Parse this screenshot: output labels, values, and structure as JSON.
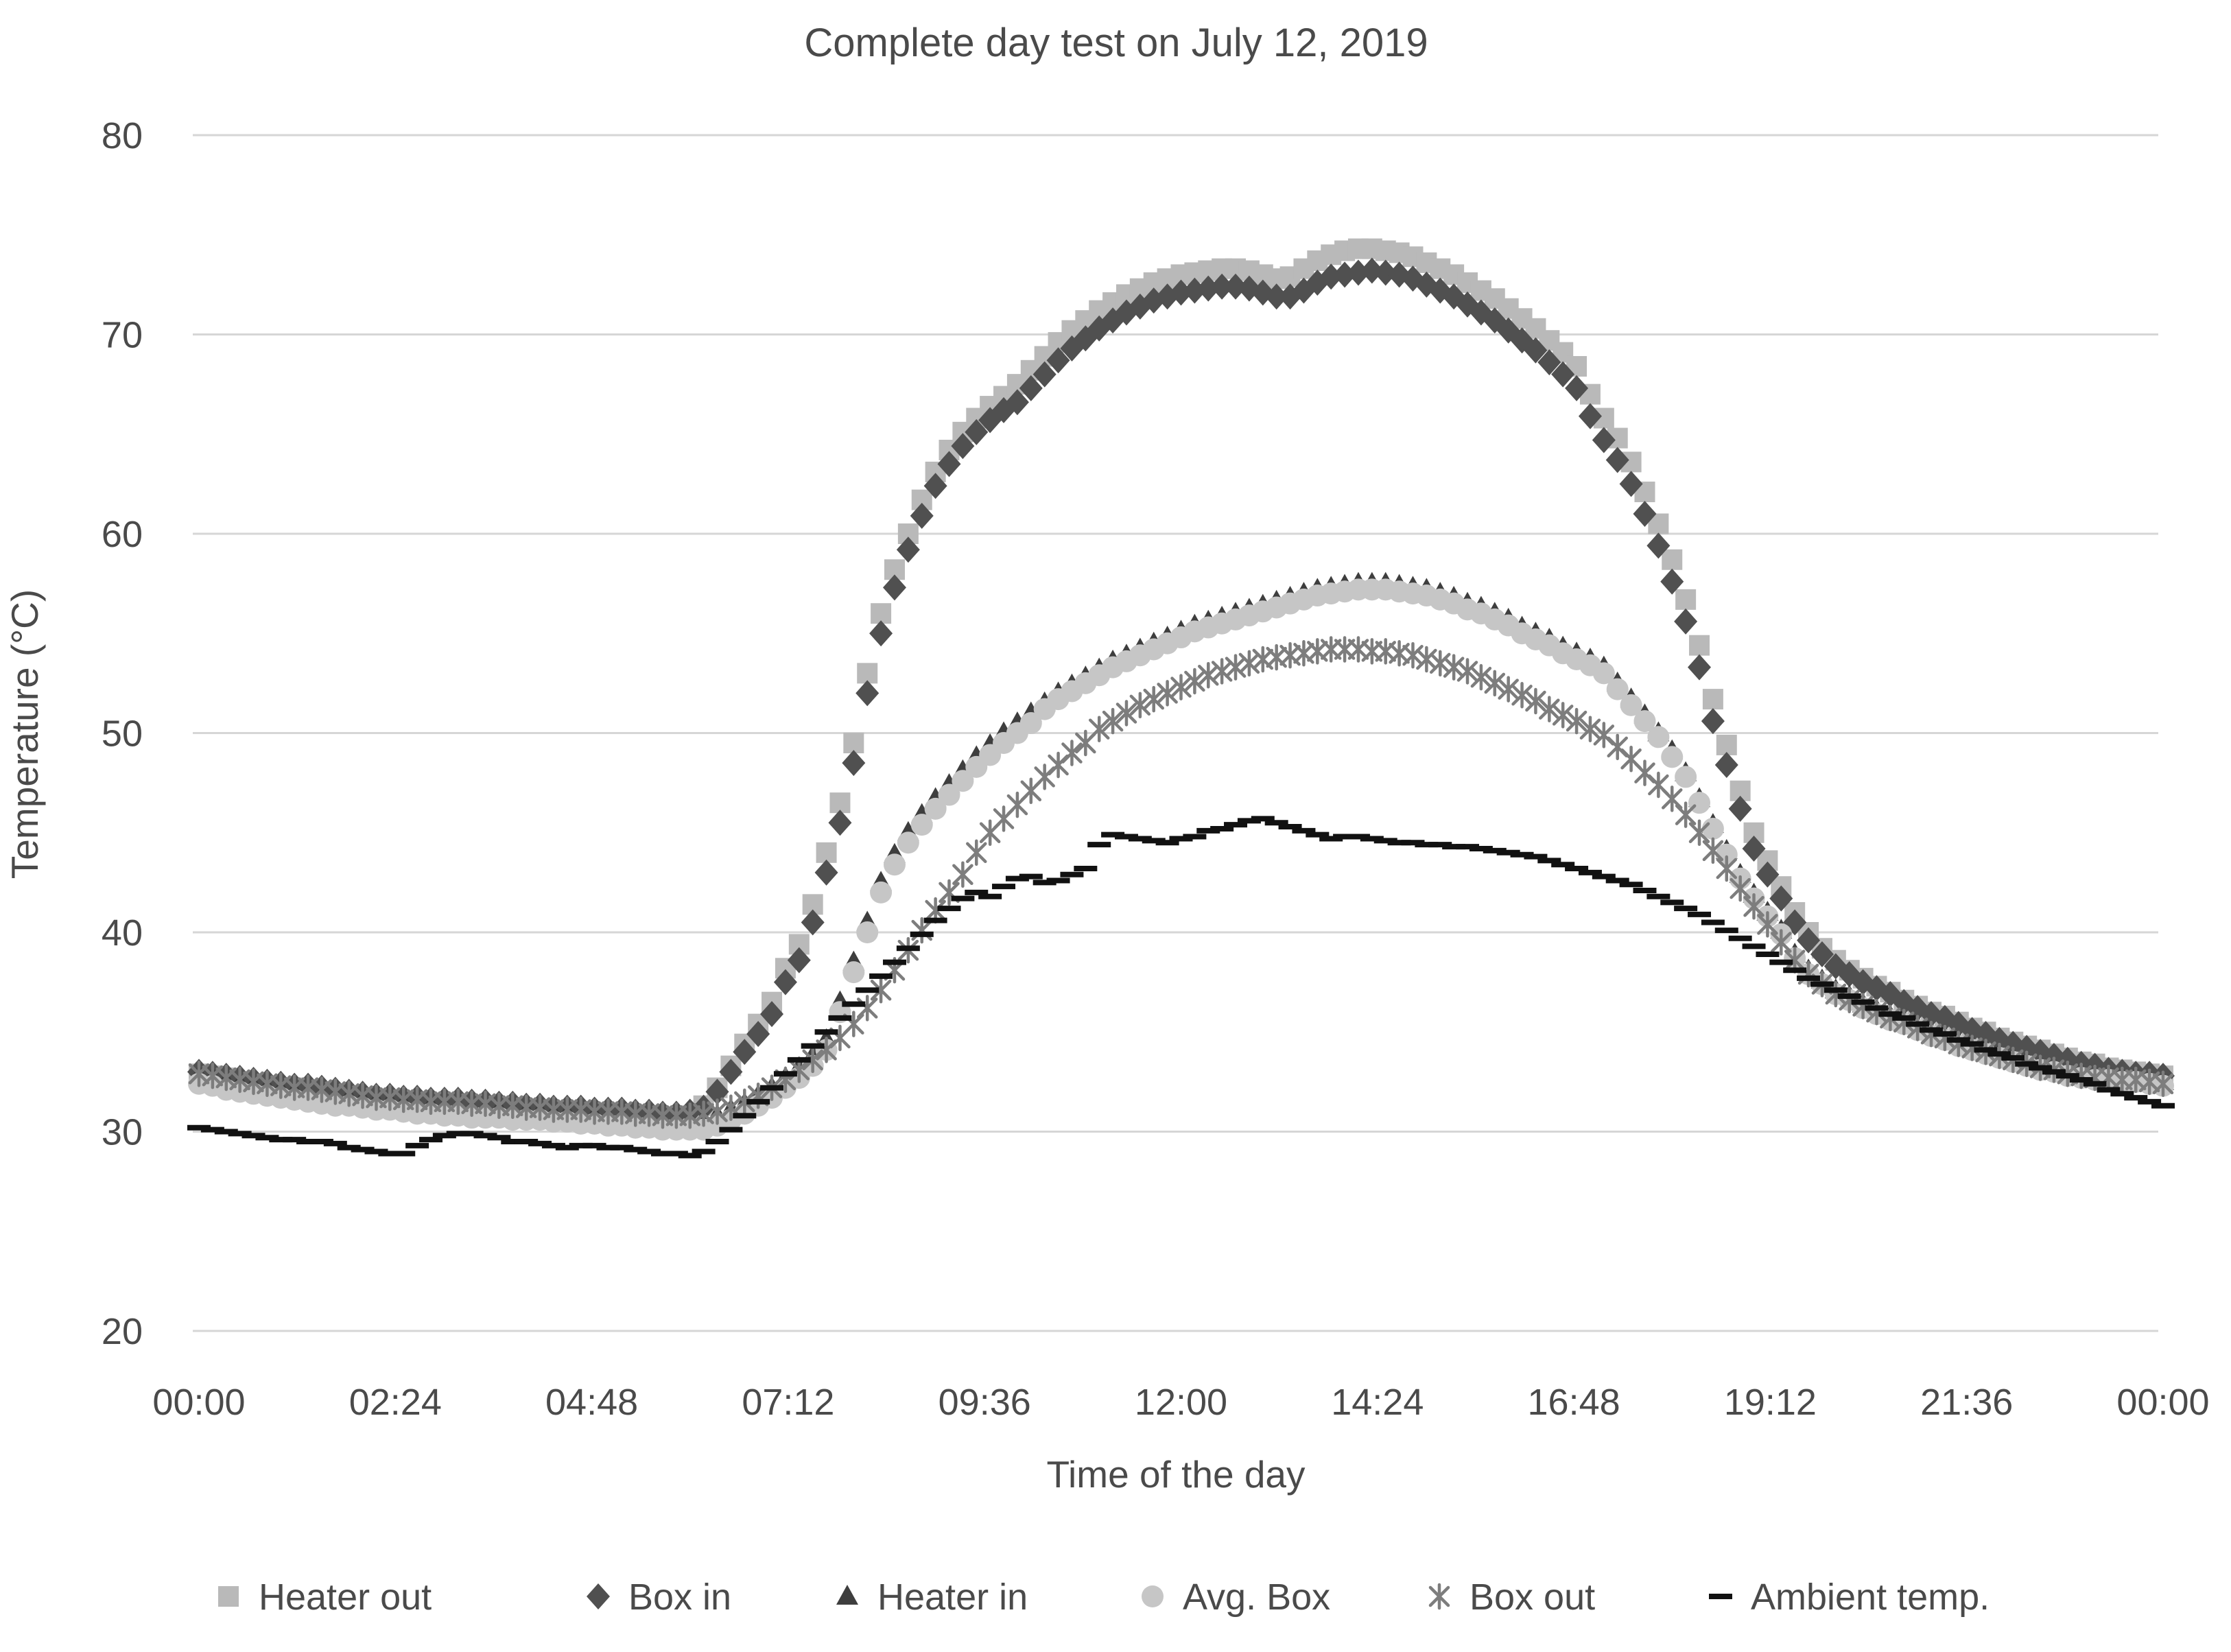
{
  "title": "Complete day test on July 12, 2019",
  "y_axis": {
    "label": "Temperature (°C)",
    "ticks": [
      80,
      70,
      60,
      50,
      40,
      30,
      20
    ],
    "min": 20,
    "max": 80
  },
  "x_axis": {
    "label": "Time of the day",
    "ticks": [
      "00:00",
      "02:24",
      "04:48",
      "07:12",
      "09:36",
      "12:00",
      "14:24",
      "16:48",
      "19:12",
      "21:36",
      "00:00"
    ]
  },
  "legend": [
    {
      "label": "Heater out",
      "marker": "square",
      "color": "#b9b9b9"
    },
    {
      "label": "Box in",
      "marker": "diamond",
      "color": "#505050"
    },
    {
      "label": "Heater in",
      "marker": "triangle",
      "color": "#3e3e3e"
    },
    {
      "label": "Avg. Box",
      "marker": "circle",
      "color": "#c6c6c6"
    },
    {
      "label": "Box out",
      "marker": "asterisk",
      "color": "#7d7d7d"
    },
    {
      "label": "Ambient temp.",
      "marker": "dash",
      "color": "#111111"
    }
  ],
  "chart_data": {
    "type": "scatter",
    "title": "Complete day test on July 12, 2019",
    "xlabel": "Time of the day",
    "ylabel": "Temperature (°C)",
    "ylim": [
      20,
      80
    ],
    "grid": "horizontal",
    "legend_position": "bottom",
    "x_tick_labels": [
      "00:00",
      "02:24",
      "04:48",
      "07:12",
      "09:36",
      "12:00",
      "14:24",
      "16:48",
      "19:12",
      "21:36",
      "00:00"
    ],
    "x_minutes_start": 0,
    "x_minutes_step": 10,
    "x_minutes_end": 1440,
    "series": [
      {
        "name": "Heater out",
        "marker": "square",
        "color": "#b9b9b9",
        "values": [
          32.9,
          32.8,
          32.7,
          32.5,
          32.4,
          32.3,
          32.2,
          32.2,
          32.1,
          32.0,
          31.9,
          31.8,
          31.7,
          31.6,
          31.6,
          31.5,
          31.5,
          31.4,
          31.4,
          31.4,
          31.3,
          31.3,
          31.2,
          31.2,
          31.1,
          31.1,
          31.0,
          31.0,
          31.0,
          30.9,
          30.9,
          30.9,
          30.8,
          30.8,
          30.7,
          30.7,
          30.8,
          31.3,
          32.2,
          33.3,
          34.4,
          35.4,
          36.5,
          38.2,
          39.4,
          41.4,
          44.0,
          46.5,
          49.5,
          53.0,
          56.0,
          58.2,
          60.0,
          61.7,
          63.1,
          64.2,
          65.1,
          65.8,
          66.4,
          66.9,
          67.5,
          68.2,
          68.9,
          69.6,
          70.2,
          70.7,
          71.2,
          71.6,
          72.0,
          72.3,
          72.6,
          72.8,
          73.0,
          73.1,
          73.2,
          73.3,
          73.3,
          73.2,
          73.0,
          72.8,
          72.9,
          73.3,
          73.7,
          74.0,
          74.2,
          74.3,
          74.3,
          74.2,
          74.1,
          73.9,
          73.6,
          73.3,
          73.0,
          72.6,
          72.2,
          71.8,
          71.3,
          70.8,
          70.3,
          69.7,
          69.1,
          68.4,
          67.0,
          65.8,
          64.8,
          63.6,
          62.1,
          60.5,
          58.7,
          56.7,
          54.4,
          51.7,
          49.4,
          47.1,
          45.0,
          43.6,
          42.3,
          41.0,
          40.0,
          39.2,
          38.6,
          38.1,
          37.7,
          37.3,
          37.0,
          36.6,
          36.3,
          36.0,
          35.8,
          35.5,
          35.2,
          35.0,
          34.7,
          34.5,
          34.3,
          34.1,
          33.9,
          33.7,
          33.5,
          33.4,
          33.2,
          33.1,
          33.0,
          32.9,
          32.8
        ]
      },
      {
        "name": "Box in",
        "marker": "diamond",
        "color": "#505050",
        "values": [
          33.0,
          32.9,
          32.8,
          32.7,
          32.6,
          32.5,
          32.4,
          32.3,
          32.3,
          32.2,
          32.1,
          32.0,
          31.9,
          31.8,
          31.8,
          31.7,
          31.7,
          31.6,
          31.6,
          31.6,
          31.5,
          31.5,
          31.4,
          31.4,
          31.3,
          31.3,
          31.2,
          31.2,
          31.2,
          31.1,
          31.1,
          31.1,
          31.0,
          31.0,
          30.9,
          30.9,
          31.0,
          31.2,
          32.0,
          33.0,
          34.0,
          34.9,
          35.9,
          37.5,
          38.6,
          40.5,
          43.0,
          45.5,
          48.5,
          52.0,
          55.0,
          57.3,
          59.2,
          60.9,
          62.4,
          63.5,
          64.4,
          65.1,
          65.7,
          66.2,
          66.6,
          67.3,
          68.0,
          68.7,
          69.3,
          69.8,
          70.3,
          70.7,
          71.1,
          71.4,
          71.7,
          71.9,
          72.1,
          72.2,
          72.3,
          72.4,
          72.4,
          72.3,
          72.1,
          71.9,
          71.9,
          72.2,
          72.6,
          72.9,
          73.0,
          73.1,
          73.2,
          73.1,
          73.0,
          72.8,
          72.5,
          72.2,
          71.9,
          71.5,
          71.1,
          70.7,
          70.2,
          69.7,
          69.2,
          68.6,
          68.0,
          67.3,
          65.9,
          64.7,
          63.7,
          62.5,
          61.0,
          59.4,
          57.6,
          55.6,
          53.3,
          50.6,
          48.4,
          46.2,
          44.2,
          42.9,
          41.7,
          40.5,
          39.6,
          38.9,
          38.3,
          37.9,
          37.5,
          37.2,
          36.9,
          36.5,
          36.2,
          35.9,
          35.7,
          35.4,
          35.1,
          34.9,
          34.6,
          34.4,
          34.2,
          34.0,
          33.8,
          33.6,
          33.4,
          33.3,
          33.1,
          33.0,
          32.9,
          32.9,
          32.8
        ]
      },
      {
        "name": "Heater in",
        "marker": "triangle",
        "color": "#3e3e3e",
        "values": [
          32.8,
          32.7,
          32.5,
          32.4,
          32.3,
          32.2,
          32.1,
          32.0,
          31.9,
          31.8,
          31.7,
          31.7,
          31.6,
          31.5,
          31.5,
          31.4,
          31.3,
          31.3,
          31.2,
          31.2,
          31.1,
          31.1,
          31.1,
          31.0,
          31.0,
          31.0,
          30.9,
          30.9,
          30.8,
          30.8,
          30.7,
          30.7,
          30.6,
          30.6,
          30.5,
          30.5,
          30.5,
          30.6,
          30.8,
          31.1,
          31.4,
          31.8,
          32.2,
          32.7,
          33.2,
          33.8,
          34.6,
          36.5,
          38.5,
          40.5,
          42.5,
          43.9,
          45.0,
          45.9,
          46.7,
          47.4,
          48.1,
          48.8,
          49.4,
          50.0,
          50.5,
          51.0,
          51.5,
          52.0,
          52.4,
          52.8,
          53.2,
          53.6,
          53.9,
          54.2,
          54.5,
          54.8,
          55.1,
          55.4,
          55.6,
          55.8,
          56.0,
          56.2,
          56.4,
          56.6,
          56.8,
          57.0,
          57.2,
          57.3,
          57.4,
          57.5,
          57.5,
          57.5,
          57.4,
          57.3,
          57.2,
          57.0,
          56.8,
          56.5,
          56.3,
          56.0,
          55.7,
          55.3,
          55.0,
          54.7,
          54.3,
          54.0,
          53.7,
          53.3,
          52.5,
          51.7,
          50.9,
          50.0,
          49.1,
          48.0,
          46.7,
          45.4,
          44.1,
          42.9,
          41.9,
          41.0,
          40.1,
          38.9,
          38.1,
          37.6,
          37.1,
          36.8,
          36.4,
          36.1,
          35.8,
          35.6,
          35.3,
          35.0,
          34.8,
          34.5,
          34.3,
          34.1,
          33.9,
          33.7,
          33.5,
          33.3,
          33.2,
          33.0,
          32.9,
          32.8,
          32.8,
          32.7,
          32.7,
          32.6,
          32.5
        ]
      },
      {
        "name": "Avg. Box",
        "marker": "circle",
        "color": "#c6c6c6",
        "values": [
          32.4,
          32.3,
          32.1,
          32.0,
          31.9,
          31.8,
          31.7,
          31.6,
          31.5,
          31.4,
          31.3,
          31.3,
          31.2,
          31.1,
          31.1,
          31.0,
          30.9,
          30.9,
          30.8,
          30.8,
          30.7,
          30.7,
          30.7,
          30.6,
          30.6,
          30.6,
          30.5,
          30.5,
          30.4,
          30.4,
          30.3,
          30.3,
          30.2,
          30.2,
          30.1,
          30.1,
          30.1,
          30.1,
          30.3,
          30.6,
          30.9,
          31.3,
          31.7,
          32.2,
          32.7,
          33.3,
          34.1,
          36.0,
          38.0,
          40.0,
          42.0,
          43.4,
          44.5,
          45.4,
          46.2,
          46.9,
          47.6,
          48.3,
          48.9,
          49.5,
          50.0,
          50.5,
          51.2,
          51.7,
          52.1,
          52.5,
          52.9,
          53.3,
          53.6,
          53.9,
          54.2,
          54.5,
          54.8,
          55.1,
          55.3,
          55.5,
          55.7,
          55.9,
          56.1,
          56.3,
          56.5,
          56.7,
          56.9,
          57.0,
          57.1,
          57.2,
          57.2,
          57.2,
          57.1,
          57.0,
          56.9,
          56.7,
          56.5,
          56.2,
          56.0,
          55.7,
          55.4,
          55.0,
          54.7,
          54.4,
          54.0,
          53.7,
          53.4,
          53.0,
          52.2,
          51.4,
          50.6,
          49.8,
          48.8,
          47.8,
          46.5,
          45.2,
          43.9,
          42.7,
          41.7,
          40.8,
          39.9,
          38.7,
          37.9,
          37.4,
          36.9,
          36.6,
          36.2,
          35.9,
          35.6,
          35.4,
          35.1,
          34.8,
          34.6,
          34.3,
          34.1,
          33.9,
          33.7,
          33.5,
          33.3,
          33.1,
          33.0,
          32.8,
          32.7,
          32.6,
          32.6,
          32.5,
          32.5,
          32.4,
          32.3
        ]
      },
      {
        "name": "Box out",
        "marker": "asterisk",
        "color": "#7d7d7d",
        "values": [
          32.9,
          32.8,
          32.7,
          32.6,
          32.5,
          32.4,
          32.3,
          32.2,
          32.2,
          32.1,
          32.0,
          31.9,
          31.8,
          31.7,
          31.7,
          31.6,
          31.6,
          31.5,
          31.5,
          31.5,
          31.4,
          31.4,
          31.3,
          31.3,
          31.2,
          31.2,
          31.1,
          31.1,
          31.1,
          31.0,
          31.0,
          31.0,
          30.9,
          30.9,
          30.8,
          30.8,
          30.8,
          30.9,
          31.0,
          31.2,
          31.5,
          31.8,
          32.2,
          32.6,
          33.1,
          33.6,
          34.1,
          34.7,
          35.4,
          36.2,
          37.1,
          38.1,
          39.1,
          40.1,
          41.1,
          42.0,
          42.9,
          44.0,
          45.0,
          45.7,
          46.4,
          47.1,
          47.8,
          48.4,
          49.0,
          49.5,
          50.2,
          50.6,
          51.0,
          51.4,
          51.7,
          52.0,
          52.3,
          52.6,
          52.9,
          53.1,
          53.3,
          53.5,
          53.7,
          53.8,
          53.9,
          54.0,
          54.1,
          54.2,
          54.2,
          54.2,
          54.1,
          54.1,
          54.0,
          53.9,
          53.7,
          53.5,
          53.3,
          53.1,
          52.8,
          52.5,
          52.2,
          51.9,
          51.6,
          51.2,
          50.9,
          50.6,
          50.2,
          49.9,
          49.3,
          48.7,
          48.0,
          47.4,
          46.7,
          45.9,
          45.0,
          44.1,
          43.2,
          42.2,
          41.3,
          40.4,
          39.5,
          38.6,
          37.9,
          37.4,
          36.9,
          36.6,
          36.3,
          36.0,
          35.7,
          35.5,
          35.2,
          34.9,
          34.7,
          34.4,
          34.2,
          34.0,
          33.8,
          33.6,
          33.4,
          33.2,
          33.1,
          32.9,
          32.8,
          32.7,
          32.7,
          32.6,
          32.6,
          32.5,
          32.4
        ]
      },
      {
        "name": "Ambient temp.",
        "marker": "dash",
        "color": "#111111",
        "values": [
          30.2,
          30.1,
          30.0,
          29.9,
          29.8,
          29.7,
          29.6,
          29.6,
          29.5,
          29.5,
          29.4,
          29.2,
          29.1,
          29.0,
          28.9,
          28.9,
          29.3,
          29.6,
          29.8,
          29.9,
          29.9,
          29.8,
          29.7,
          29.5,
          29.5,
          29.4,
          29.3,
          29.2,
          29.3,
          29.3,
          29.2,
          29.2,
          29.1,
          29.0,
          28.9,
          28.9,
          28.8,
          29.0,
          29.5,
          30.1,
          30.8,
          31.5,
          32.2,
          32.9,
          33.6,
          34.3,
          35.0,
          35.7,
          36.4,
          37.1,
          37.8,
          38.5,
          39.2,
          39.9,
          40.6,
          41.2,
          41.7,
          42.0,
          41.8,
          42.3,
          42.7,
          42.8,
          42.5,
          42.6,
          42.9,
          43.2,
          44.4,
          44.9,
          44.8,
          44.7,
          44.6,
          44.5,
          44.7,
          44.8,
          45.1,
          45.2,
          45.4,
          45.6,
          45.7,
          45.5,
          45.3,
          45.1,
          44.9,
          44.7,
          44.8,
          44.8,
          44.7,
          44.6,
          44.5,
          44.5,
          44.4,
          44.4,
          44.3,
          44.3,
          44.2,
          44.1,
          44.0,
          43.9,
          43.8,
          43.6,
          43.4,
          43.2,
          43.0,
          42.8,
          42.6,
          42.4,
          42.1,
          41.8,
          41.5,
          41.2,
          40.9,
          40.5,
          40.1,
          39.7,
          39.3,
          38.9,
          38.5,
          38.1,
          37.7,
          37.4,
          37.1,
          36.8,
          36.5,
          36.2,
          35.9,
          35.7,
          35.4,
          35.1,
          34.9,
          34.6,
          34.4,
          34.1,
          33.9,
          33.7,
          33.4,
          33.2,
          33.0,
          32.8,
          32.6,
          32.4,
          32.1,
          31.9,
          31.7,
          31.5,
          31.3
        ]
      }
    ]
  }
}
